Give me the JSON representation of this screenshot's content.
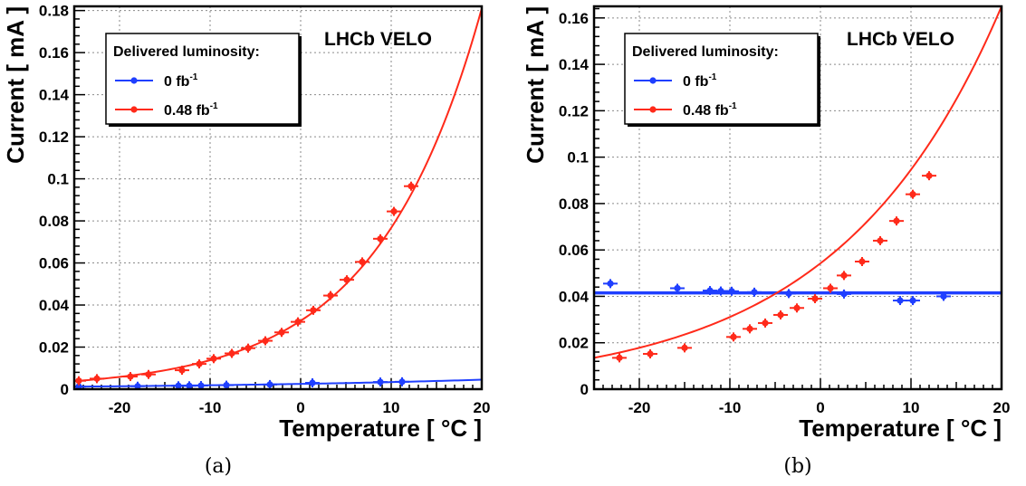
{
  "chart_data": [
    {
      "type": "scatter",
      "panel_label": "(a)",
      "annotation": "LHCb VELO",
      "legend_title": "Delivered luminosity:",
      "legend_placement": "top-left",
      "xlabel": "Temperature [ °C ]",
      "ylabel": "Current [ mA ]",
      "xlim": [
        -25,
        20
      ],
      "ylim": [
        0,
        0.182
      ],
      "xticks": [
        -20,
        -10,
        0,
        10,
        20
      ],
      "yticks": [
        0,
        0.02,
        0.04,
        0.06,
        0.08,
        0.1,
        0.12,
        0.14,
        0.16,
        0.18
      ],
      "ytick_labels": [
        "0",
        "0.02",
        "0.04",
        "0.06",
        "0.08",
        "0.1",
        "0.12",
        "0.14",
        "0.16",
        "0.18"
      ],
      "grid": true,
      "series": [
        {
          "name": "0 fb",
          "name_superscript": "-1",
          "color": "#1f3fff",
          "fit": {
            "kind": "exponential",
            "x": [
              -25,
              20
            ],
            "y": [
              0.0012,
              0.0045
            ]
          },
          "x": [
            -24.5,
            -18,
            -13.5,
            -12.3,
            -11,
            -8.2,
            -3.4,
            1.3,
            8.8,
            11.2
          ],
          "y": [
            0.0012,
            0.0014,
            0.0016,
            0.0016,
            0.0017,
            0.0019,
            0.0022,
            0.003,
            0.0034,
            0.0035
          ]
        },
        {
          "name": "0.48 fb",
          "name_superscript": "-1",
          "color": "#ff2a1a",
          "fit": {
            "kind": "exponential",
            "x": [
              -25,
              20
            ],
            "y": [
              0.0038,
              0.181
            ]
          },
          "x": [
            -24.5,
            -22.5,
            -18.8,
            -16.8,
            -13.1,
            -11.2,
            -9.6,
            -7.6,
            -5.8,
            -3.9,
            -2.1,
            -0.3,
            1.4,
            3.3,
            5.1,
            6.8,
            8.8,
            10.3,
            12.2
          ],
          "y": [
            0.004,
            0.005,
            0.006,
            0.007,
            0.009,
            0.012,
            0.0145,
            0.017,
            0.0195,
            0.023,
            0.027,
            0.032,
            0.0375,
            0.0445,
            0.052,
            0.0605,
            0.0715,
            0.0845,
            0.0965
          ]
        }
      ]
    },
    {
      "type": "scatter",
      "panel_label": "(b)",
      "annotation": "LHCb VELO",
      "legend_title": "Delivered luminosity:",
      "legend_placement": "top-left",
      "xlabel": "Temperature [ °C ]",
      "ylabel": "Current [ mA ]",
      "xlim": [
        -25,
        20
      ],
      "ylim": [
        0,
        0.165
      ],
      "xticks": [
        -20,
        -10,
        0,
        10,
        20
      ],
      "yticks": [
        0,
        0.02,
        0.04,
        0.06,
        0.08,
        0.1,
        0.12,
        0.14,
        0.16
      ],
      "ytick_labels": [
        "0",
        "0.02",
        "0.04",
        "0.06",
        "0.08",
        "0.1",
        "0.12",
        "0.14",
        "0.16"
      ],
      "grid": true,
      "series": [
        {
          "name": "0 fb",
          "name_superscript": "-1",
          "color": "#1f3fff",
          "fit": {
            "kind": "constant",
            "x": [
              -25,
              20
            ],
            "y": [
              0.0415,
              0.0415
            ]
          },
          "x": [
            -23.2,
            -15.8,
            -12.2,
            -11,
            -9.8,
            -7.3,
            -3.5,
            2.6,
            8.8,
            10.2,
            13.6
          ],
          "y": [
            0.0455,
            0.0435,
            0.0425,
            0.0423,
            0.0422,
            0.0418,
            0.0412,
            0.041,
            0.0382,
            0.0382,
            0.04
          ]
        },
        {
          "name": "0.48 fb",
          "name_superscript": "-1",
          "color": "#ff2a1a",
          "fit": {
            "kind": "exponential",
            "x": [
              -25,
              20
            ],
            "y": [
              0.0135,
              0.165
            ]
          },
          "x": [
            -22.2,
            -18.8,
            -15,
            -9.6,
            -7.8,
            -6.1,
            -4.4,
            -2.6,
            -0.6,
            1.1,
            2.6,
            4.6,
            6.6,
            8.4,
            10.2,
            12
          ],
          "y": [
            0.0135,
            0.0152,
            0.0178,
            0.0225,
            0.026,
            0.0285,
            0.032,
            0.035,
            0.039,
            0.0435,
            0.049,
            0.055,
            0.064,
            0.0725,
            0.084,
            0.092
          ]
        }
      ]
    }
  ]
}
